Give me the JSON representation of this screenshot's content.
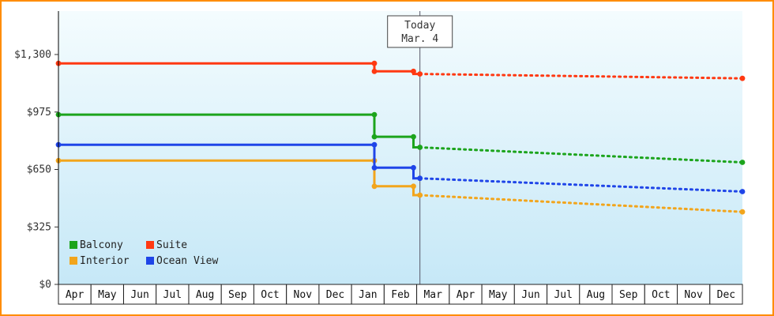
{
  "colors": {
    "frame_border": "#ff8c00",
    "plot_bg_top": "#f4fcfe",
    "plot_bg_bottom": "#c6e8f7",
    "axis": "#000000",
    "today_line": "#555566"
  },
  "chart_data": {
    "type": "line",
    "currency": "USD",
    "y_axis": {
      "tick_values": [
        0,
        325,
        650,
        975,
        1300
      ],
      "tick_labels": [
        "$0",
        "$325",
        "$650",
        "$975",
        "$1,300"
      ]
    },
    "x_axis": {
      "months": [
        "Apr",
        "May",
        "Jun",
        "Jul",
        "Aug",
        "Sep",
        "Oct",
        "Nov",
        "Dec",
        "Jan",
        "Feb",
        "Mar",
        "Apr",
        "May",
        "Jun",
        "Jul",
        "Aug",
        "Sep",
        "Oct",
        "Nov",
        "Dec"
      ]
    },
    "today_marker": {
      "line1": "Today",
      "line2": "Mar. 4",
      "x_month_index": 11.1
    },
    "series": [
      {
        "name": "Balcony",
        "color": "#1ca41c",
        "points_historic": [
          [
            0,
            960
          ],
          [
            9.7,
            960
          ],
          [
            9.7,
            835
          ],
          [
            10.9,
            835
          ],
          [
            10.9,
            775
          ],
          [
            11.1,
            775
          ]
        ],
        "points_forecast": [
          [
            11.1,
            775
          ],
          [
            21,
            690
          ]
        ],
        "markers": [
          [
            0,
            960
          ],
          [
            9.7,
            960
          ],
          [
            9.7,
            835
          ],
          [
            10.9,
            835
          ],
          [
            11.1,
            775
          ],
          [
            21,
            690
          ]
        ]
      },
      {
        "name": "Suite",
        "color": "#ff3912",
        "points_historic": [
          [
            0,
            1250
          ],
          [
            9.7,
            1250
          ],
          [
            9.7,
            1205
          ],
          [
            10.9,
            1205
          ],
          [
            10.9,
            1190
          ],
          [
            11.1,
            1190
          ]
        ],
        "points_forecast": [
          [
            11.1,
            1190
          ],
          [
            21,
            1165
          ]
        ],
        "markers": [
          [
            0,
            1250
          ],
          [
            9.7,
            1250
          ],
          [
            9.7,
            1205
          ],
          [
            10.9,
            1205
          ],
          [
            11.1,
            1190
          ],
          [
            21,
            1165
          ]
        ]
      },
      {
        "name": "Interior",
        "color": "#f2a51c",
        "points_historic": [
          [
            0,
            700
          ],
          [
            9.7,
            700
          ],
          [
            9.7,
            555
          ],
          [
            10.9,
            555
          ],
          [
            10.9,
            505
          ],
          [
            11.1,
            505
          ]
        ],
        "points_forecast": [
          [
            11.1,
            505
          ],
          [
            21,
            410
          ]
        ],
        "markers": [
          [
            0,
            700
          ],
          [
            9.7,
            700
          ],
          [
            9.7,
            555
          ],
          [
            10.9,
            555
          ],
          [
            11.1,
            505
          ],
          [
            21,
            410
          ]
        ]
      },
      {
        "name": "Ocean View",
        "color": "#1f45e8",
        "points_historic": [
          [
            0,
            790
          ],
          [
            9.7,
            790
          ],
          [
            9.7,
            660
          ],
          [
            10.9,
            660
          ],
          [
            10.9,
            600
          ],
          [
            11.1,
            600
          ]
        ],
        "points_forecast": [
          [
            11.1,
            600
          ],
          [
            21,
            525
          ]
        ],
        "markers": [
          [
            0,
            790
          ],
          [
            9.7,
            790
          ],
          [
            9.7,
            660
          ],
          [
            10.9,
            660
          ],
          [
            11.1,
            600
          ],
          [
            21,
            525
          ]
        ]
      }
    ],
    "legend": {
      "items": [
        "Balcony",
        "Suite",
        "Interior",
        "Ocean View"
      ]
    }
  }
}
